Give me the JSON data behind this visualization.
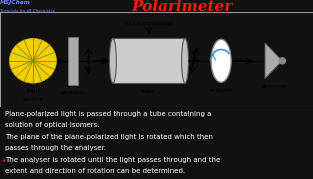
{
  "title": "Polarimeter",
  "title_color": "#ff1a00",
  "bg_color": "#111111",
  "diagram_bg": "#d8d8d8",
  "watermark_line1": "MSJChem",
  "watermark_line2": "Tutorials for IB Chemistry",
  "text_lines": [
    "Plane-polarized light is passed through a tube containing a",
    "solution of optical isomers.",
    "The plane of the plane-polarized light is rotated which then",
    "passes through the analyser.",
    "The analyser is rotated until the light passes through and the",
    "extent and direction of rotation can be determined."
  ],
  "text_color": "#ffffff",
  "bullet_color": "#ff0000"
}
